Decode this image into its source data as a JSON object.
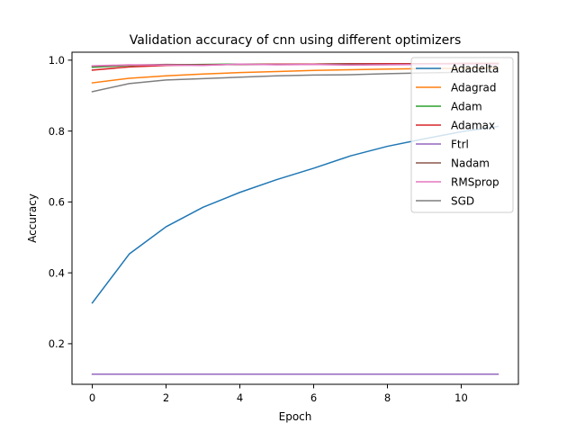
{
  "chart_data": {
    "type": "line",
    "title": "Validation accuracy of cnn using different optimizers",
    "xlabel": "Epoch",
    "ylabel": "Accuracy",
    "xlim": [
      -0.55,
      11.55
    ],
    "ylim": [
      0.0855,
      1.0225
    ],
    "xticks": [
      0,
      2,
      4,
      6,
      8,
      10
    ],
    "yticks": [
      0.2,
      0.4,
      0.6,
      0.8,
      1.0
    ],
    "xtick_labels": [
      "0",
      "2",
      "4",
      "6",
      "8",
      "10"
    ],
    "ytick_labels": [
      "0.2",
      "0.4",
      "0.6",
      "0.8",
      "1.0"
    ],
    "grid": false,
    "legend_position": "top-right",
    "x": [
      0,
      1,
      2,
      3,
      4,
      5,
      6,
      7,
      8,
      9,
      10,
      11
    ],
    "series": [
      {
        "name": "Adadelta",
        "color": "#1f77b4",
        "values": [
          0.315,
          0.453,
          0.53,
          0.585,
          0.627,
          0.663,
          0.695,
          0.73,
          0.757,
          0.778,
          0.798,
          0.813
        ]
      },
      {
        "name": "Adagrad",
        "color": "#ff7f0e",
        "values": [
          0.936,
          0.949,
          0.956,
          0.961,
          0.965,
          0.968,
          0.971,
          0.973,
          0.975,
          0.976,
          0.977,
          0.978
        ]
      },
      {
        "name": "Adam",
        "color": "#2ca02c",
        "values": [
          0.98,
          0.985,
          0.987,
          0.988,
          0.989,
          0.989,
          0.989,
          0.99,
          0.99,
          0.99,
          0.99,
          0.99
        ]
      },
      {
        "name": "Adamax",
        "color": "#d62728",
        "values": [
          0.972,
          0.981,
          0.985,
          0.987,
          0.988,
          0.989,
          0.989,
          0.99,
          0.99,
          0.99,
          0.991,
          0.991
        ]
      },
      {
        "name": "Ftrl",
        "color": "#9467bd",
        "values": [
          0.114,
          0.114,
          0.114,
          0.114,
          0.114,
          0.114,
          0.114,
          0.114,
          0.114,
          0.114,
          0.114,
          0.114
        ]
      },
      {
        "name": "Nadam",
        "color": "#8c564b",
        "values": [
          0.983,
          0.986,
          0.988,
          0.987,
          0.988,
          0.988,
          0.988,
          0.989,
          0.988,
          0.989,
          0.989,
          0.989
        ]
      },
      {
        "name": "RMSprop",
        "color": "#e377c2",
        "values": [
          0.984,
          0.987,
          0.986,
          0.985,
          0.989,
          0.987,
          0.988,
          0.986,
          0.987,
          0.988,
          0.989,
          0.988
        ]
      },
      {
        "name": "SGD",
        "color": "#7f7f7f",
        "values": [
          0.911,
          0.934,
          0.944,
          0.948,
          0.952,
          0.956,
          0.958,
          0.959,
          0.962,
          0.964,
          0.966,
          0.967
        ]
      }
    ]
  }
}
